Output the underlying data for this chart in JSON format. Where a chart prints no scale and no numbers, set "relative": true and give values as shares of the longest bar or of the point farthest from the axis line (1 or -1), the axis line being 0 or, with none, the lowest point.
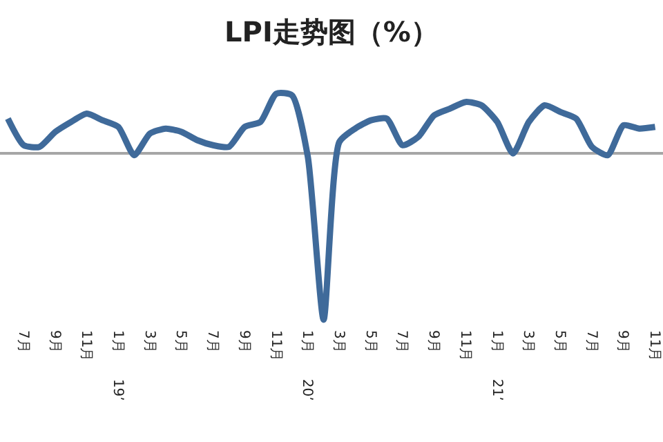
{
  "chart_data": {
    "type": "line",
    "title": "LPI走势图（%）",
    "relative": true,
    "marker": "none",
    "line_style": "solid",
    "categories": [
      null,
      "7月",
      null,
      "9月",
      null,
      "11月",
      null,
      "1月 19’",
      null,
      "3月",
      null,
      "5月",
      null,
      "7月",
      null,
      "9月",
      null,
      "11月",
      null,
      "1月 20’",
      null,
      "3月",
      null,
      "5月",
      null,
      "7月",
      null,
      "9月",
      null,
      "11月",
      null,
      "1月 21’",
      null,
      "3月",
      null,
      "5月",
      null,
      "7月",
      null,
      "9月",
      null,
      "11月"
    ],
    "series": [
      {
        "color": "#3f6a9a",
        "values": [
          0.21,
          0.05,
          0.04,
          0.13,
          0.19,
          0.24,
          0.2,
          0.16,
          -0.01,
          0.12,
          0.15,
          0.13,
          0.08,
          0.05,
          0.04,
          0.16,
          0.19,
          0.36,
          0.35,
          -0.02,
          -1,
          0.07,
          0.15,
          0.2,
          0.21,
          0.05,
          0.1,
          0.23,
          0.27,
          0.31,
          0.29,
          0.19,
          0.0,
          0.19,
          0.29,
          0.25,
          0.21,
          0.04,
          -0.01,
          0.17,
          0.15,
          0.16
        ]
      }
    ]
  }
}
